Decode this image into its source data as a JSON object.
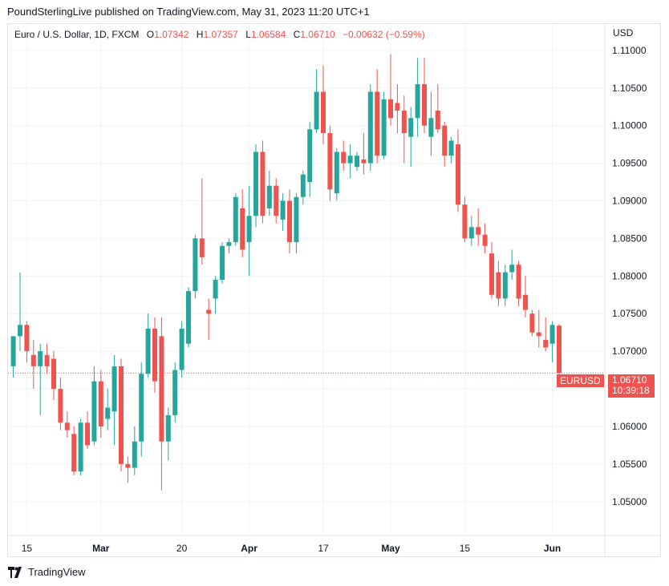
{
  "header": {
    "published": "PoundSterlingLive published on TradingView.com, May 31, 2023 11:20 UTC+1"
  },
  "legend": {
    "symbol": "Euro / U.S. Dollar, 1D, FXCM",
    "o_label": "O",
    "o_value": "1.07342",
    "h_label": "H",
    "h_value": "1.07357",
    "l_label": "L",
    "l_value": "1.06584",
    "c_label": "C",
    "c_value": "1.06710",
    "change": "−0.00632 (−0.59%)"
  },
  "currency": "USD",
  "last_price": {
    "symbol": "EURUSD",
    "price": "1.06710",
    "countdown": "10:39:18"
  },
  "footer": {
    "brand": "TradingView"
  },
  "colors": {
    "up": "#26a69a",
    "down": "#ef5350",
    "grid": "#f0f3fa"
  },
  "chart_data": {
    "type": "candlestick",
    "y_axis": {
      "ticks": [
        1.05,
        1.055,
        1.06,
        1.065,
        1.07,
        1.075,
        1.08,
        1.085,
        1.09,
        1.095,
        1.1,
        1.105,
        1.11
      ],
      "tick_labels": [
        "1.05000",
        "1.05500",
        "1.06000",
        "1.06500",
        "1.07000",
        "1.07500",
        "1.08000",
        "1.08500",
        "1.09000",
        "1.09500",
        "1.10000",
        "1.10500",
        "1.11000"
      ],
      "range": [
        1.0455,
        1.1135
      ]
    },
    "x_axis": {
      "labels": [
        {
          "label": "15",
          "index": 2
        },
        {
          "label": "Mar",
          "index": 13
        },
        {
          "label": "20",
          "index": 25
        },
        {
          "label": "Apr",
          "index": 35
        },
        {
          "label": "17",
          "index": 46
        },
        {
          "label": "May",
          "index": 56
        },
        {
          "label": "15",
          "index": 67
        },
        {
          "label": "Jun",
          "index": 80
        }
      ]
    },
    "candles": [
      {
        "o": 1.068,
        "h": 1.072,
        "l": 1.0665,
        "c": 1.072
      },
      {
        "o": 1.072,
        "h": 1.0805,
        "l": 1.07,
        "c": 1.0735
      },
      {
        "o": 1.0735,
        "h": 1.074,
        "l": 1.0685,
        "c": 1.07
      },
      {
        "o": 1.0695,
        "h": 1.0715,
        "l": 1.065,
        "c": 1.068
      },
      {
        "o": 1.068,
        "h": 1.071,
        "l": 1.0615,
        "c": 1.07
      },
      {
        "o": 1.0695,
        "h": 1.071,
        "l": 1.067,
        "c": 1.068
      },
      {
        "o": 1.069,
        "h": 1.07,
        "l": 1.0635,
        "c": 1.065
      },
      {
        "o": 1.065,
        "h": 1.0665,
        "l": 1.0595,
        "c": 1.0605
      },
      {
        "o": 1.0605,
        "h": 1.062,
        "l": 1.0585,
        "c": 1.0595
      },
      {
        "o": 1.059,
        "h": 1.06,
        "l": 1.0535,
        "c": 1.054
      },
      {
        "o": 1.054,
        "h": 1.061,
        "l": 1.0535,
        "c": 1.0605
      },
      {
        "o": 1.0605,
        "h": 1.062,
        "l": 1.057,
        "c": 1.0575
      },
      {
        "o": 1.058,
        "h": 1.068,
        "l": 1.0575,
        "c": 1.066
      },
      {
        "o": 1.066,
        "h": 1.0675,
        "l": 1.0585,
        "c": 1.06
      },
      {
        "o": 1.061,
        "h": 1.065,
        "l": 1.0595,
        "c": 1.0625
      },
      {
        "o": 1.062,
        "h": 1.0695,
        "l": 1.0575,
        "c": 1.068
      },
      {
        "o": 1.068,
        "h": 1.069,
        "l": 1.054,
        "c": 1.055
      },
      {
        "o": 1.055,
        "h": 1.056,
        "l": 1.0525,
        "c": 1.0545
      },
      {
        "o": 1.0545,
        "h": 1.06,
        "l": 1.0535,
        "c": 1.058
      },
      {
        "o": 1.058,
        "h": 1.0685,
        "l": 1.056,
        "c": 1.067
      },
      {
        "o": 1.067,
        "h": 1.075,
        "l": 1.0665,
        "c": 1.073
      },
      {
        "o": 1.073,
        "h": 1.0745,
        "l": 1.0645,
        "c": 1.066
      },
      {
        "o": 1.072,
        "h": 1.0745,
        "l": 1.0515,
        "c": 1.058
      },
      {
        "o": 1.058,
        "h": 1.0625,
        "l": 1.0555,
        "c": 1.0615
      },
      {
        "o": 1.0615,
        "h": 1.0685,
        "l": 1.0605,
        "c": 1.0675
      },
      {
        "o": 1.0675,
        "h": 1.074,
        "l": 1.0665,
        "c": 1.073
      },
      {
        "o": 1.071,
        "h": 1.0785,
        "l": 1.0705,
        "c": 1.078
      },
      {
        "o": 1.078,
        "h": 1.0855,
        "l": 1.077,
        "c": 1.085
      },
      {
        "o": 1.085,
        "h": 1.093,
        "l": 1.0815,
        "c": 1.0825
      },
      {
        "o": 1.0755,
        "h": 1.077,
        "l": 1.0715,
        "c": 1.075
      },
      {
        "o": 1.077,
        "h": 1.08,
        "l": 1.075,
        "c": 1.0795
      },
      {
        "o": 1.0795,
        "h": 1.0845,
        "l": 1.079,
        "c": 1.084
      },
      {
        "o": 1.084,
        "h": 1.085,
        "l": 1.083,
        "c": 1.0845
      },
      {
        "o": 1.0845,
        "h": 1.091,
        "l": 1.084,
        "c": 1.0905
      },
      {
        "o": 1.089,
        "h": 1.0915,
        "l": 1.0825,
        "c": 1.0835
      },
      {
        "o": 1.0845,
        "h": 1.092,
        "l": 1.08,
        "c": 1.088
      },
      {
        "o": 1.088,
        "h": 1.0975,
        "l": 1.0865,
        "c": 1.0965
      },
      {
        "o": 1.0965,
        "h": 1.098,
        "l": 1.087,
        "c": 1.088
      },
      {
        "o": 1.089,
        "h": 1.094,
        "l": 1.088,
        "c": 1.092
      },
      {
        "o": 1.092,
        "h": 1.093,
        "l": 1.087,
        "c": 1.088
      },
      {
        "o": 1.0875,
        "h": 1.091,
        "l": 1.086,
        "c": 1.09
      },
      {
        "o": 1.09,
        "h": 1.0915,
        "l": 1.083,
        "c": 1.0845
      },
      {
        "o": 1.0845,
        "h": 1.091,
        "l": 1.083,
        "c": 1.0905
      },
      {
        "o": 1.0905,
        "h": 1.094,
        "l": 1.0895,
        "c": 1.0935
      },
      {
        "o": 1.0925,
        "h": 1.1005,
        "l": 1.0905,
        "c": 1.0995
      },
      {
        "o": 1.0995,
        "h": 1.1075,
        "l": 1.099,
        "c": 1.1045
      },
      {
        "o": 1.1045,
        "h": 1.108,
        "l": 1.0975,
        "c": 1.099
      },
      {
        "o": 1.099,
        "h": 1.1,
        "l": 1.09,
        "c": 1.0915
      },
      {
        "o": 1.091,
        "h": 1.097,
        "l": 1.09,
        "c": 1.0965
      },
      {
        "o": 1.0965,
        "h": 1.098,
        "l": 1.094,
        "c": 1.095
      },
      {
        "o": 1.095,
        "h": 1.0975,
        "l": 1.093,
        "c": 1.096
      },
      {
        "o": 1.0945,
        "h": 1.0965,
        "l": 1.094,
        "c": 1.096
      },
      {
        "o": 1.0955,
        "h": 1.099,
        "l": 1.0935,
        "c": 1.095
      },
      {
        "o": 1.095,
        "h": 1.1055,
        "l": 1.094,
        "c": 1.1045
      },
      {
        "o": 1.1045,
        "h": 1.1075,
        "l": 1.095,
        "c": 1.096
      },
      {
        "o": 1.096,
        "h": 1.1045,
        "l": 1.0955,
        "c": 1.1035
      },
      {
        "o": 1.1035,
        "h": 1.1095,
        "l": 1.1,
        "c": 1.101
      },
      {
        "o": 1.103,
        "h": 1.1055,
        "l": 1.099,
        "c": 1.102
      },
      {
        "o": 1.102,
        "h": 1.104,
        "l": 1.095,
        "c": 1.099
      },
      {
        "o": 1.0985,
        "h": 1.1025,
        "l": 1.0945,
        "c": 1.101
      },
      {
        "o": 1.101,
        "h": 1.109,
        "l": 1.0985,
        "c": 1.1055
      },
      {
        "o": 1.1055,
        "h": 1.109,
        "l": 1.099,
        "c": 1.1
      },
      {
        "o": 1.0985,
        "h": 1.1045,
        "l": 1.096,
        "c": 1.101
      },
      {
        "o": 1.102,
        "h": 1.1055,
        "l": 1.099,
        "c": 1.0995
      },
      {
        "o": 1.1,
        "h": 1.1005,
        "l": 1.0945,
        "c": 1.096
      },
      {
        "o": 1.096,
        "h": 1.0985,
        "l": 1.095,
        "c": 1.098
      },
      {
        "o": 1.0975,
        "h": 1.0995,
        "l": 1.0885,
        "c": 1.0895
      },
      {
        "o": 1.0895,
        "h": 1.0905,
        "l": 1.0845,
        "c": 1.085
      },
      {
        "o": 1.085,
        "h": 1.088,
        "l": 1.084,
        "c": 1.0865
      },
      {
        "o": 1.0865,
        "h": 1.089,
        "l": 1.084,
        "c": 1.0855
      },
      {
        "o": 1.0855,
        "h": 1.087,
        "l": 1.083,
        "c": 1.084
      },
      {
        "o": 1.083,
        "h": 1.0845,
        "l": 1.077,
        "c": 1.0775
      },
      {
        "o": 1.0805,
        "h": 1.082,
        "l": 1.076,
        "c": 1.077
      },
      {
        "o": 1.077,
        "h": 1.0815,
        "l": 1.076,
        "c": 1.0805
      },
      {
        "o": 1.0805,
        "h": 1.0835,
        "l": 1.0795,
        "c": 1.0815
      },
      {
        "o": 1.0815,
        "h": 1.082,
        "l": 1.076,
        "c": 1.077
      },
      {
        "o": 1.0775,
        "h": 1.08,
        "l": 1.0745,
        "c": 1.0755
      },
      {
        "o": 1.075,
        "h": 1.0755,
        "l": 1.072,
        "c": 1.0725
      },
      {
        "o": 1.0725,
        "h": 1.0755,
        "l": 1.0705,
        "c": 1.072
      },
      {
        "o": 1.0715,
        "h": 1.0745,
        "l": 1.07,
        "c": 1.0705
      },
      {
        "o": 1.071,
        "h": 1.074,
        "l": 1.0685,
        "c": 1.0735
      },
      {
        "o": 1.0734,
        "h": 1.0736,
        "l": 1.0658,
        "c": 1.0671
      }
    ],
    "last_price": 1.0671
  }
}
